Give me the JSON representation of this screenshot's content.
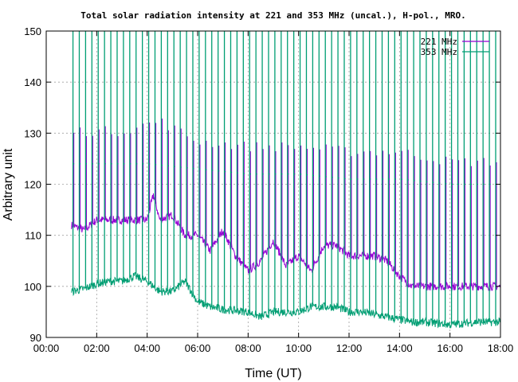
{
  "chart_data": {
    "type": "line",
    "title": "Total solar radiation intensity at 221 and 353 MHz (uncal.), H-pol., MRO.",
    "xlabel": "Time (UT)",
    "ylabel": "Arbitrary unit",
    "xlim": [
      "00:00",
      "18:00"
    ],
    "ylim": [
      90,
      150
    ],
    "x_ticks": [
      "00:00",
      "02:00",
      "04:00",
      "06:00",
      "08:00",
      "10:00",
      "12:00",
      "14:00",
      "16:00",
      "18:00"
    ],
    "y_ticks": [
      90,
      100,
      110,
      120,
      130,
      140,
      150
    ],
    "grid": true,
    "legend_position": "top-right",
    "series": [
      {
        "name": "221 MHz",
        "color": "#9400d3",
        "baseline_points": [
          [
            "01:00",
            112
          ],
          [
            "01:30",
            111
          ],
          [
            "02:00",
            113
          ],
          [
            "02:30",
            113
          ],
          [
            "03:00",
            113
          ],
          [
            "03:30",
            113
          ],
          [
            "04:00",
            113
          ],
          [
            "04:15",
            118
          ],
          [
            "04:30",
            113
          ],
          [
            "05:00",
            114
          ],
          [
            "05:30",
            110
          ],
          [
            "06:00",
            110
          ],
          [
            "06:30",
            107
          ],
          [
            "07:00",
            111
          ],
          [
            "07:30",
            106
          ],
          [
            "08:00",
            103
          ],
          [
            "08:30",
            105
          ],
          [
            "09:00",
            109
          ],
          [
            "09:30",
            104
          ],
          [
            "10:00",
            106
          ],
          [
            "10:30",
            103
          ],
          [
            "11:00",
            108
          ],
          [
            "11:30",
            108
          ],
          [
            "12:00",
            106
          ],
          [
            "12:30",
            106
          ],
          [
            "13:00",
            106
          ],
          [
            "13:30",
            105
          ],
          [
            "14:00",
            102
          ],
          [
            "14:30",
            100
          ],
          [
            "15:00",
            100
          ],
          [
            "16:00",
            100
          ],
          [
            "17:00",
            100
          ],
          [
            "18:00",
            100
          ]
        ],
        "calibration_peak_points": [
          [
            "01:00",
            130
          ],
          [
            "03:00",
            130
          ],
          [
            "04:30",
            132
          ],
          [
            "06:00",
            128
          ],
          [
            "08:00",
            127
          ],
          [
            "10:00",
            127
          ],
          [
            "12:00",
            126
          ],
          [
            "14:00",
            126
          ],
          [
            "16:00",
            124
          ],
          [
            "18:00",
            124
          ]
        ]
      },
      {
        "name": "353 MHz",
        "color": "#009e73",
        "baseline_points": [
          [
            "01:00",
            99
          ],
          [
            "01:30",
            99.5
          ],
          [
            "02:00",
            100.5
          ],
          [
            "02:30",
            101
          ],
          [
            "03:00",
            101
          ],
          [
            "03:30",
            102
          ],
          [
            "04:00",
            101
          ],
          [
            "04:30",
            99
          ],
          [
            "05:00",
            99
          ],
          [
            "05:30",
            101
          ],
          [
            "06:00",
            97
          ],
          [
            "06:30",
            96
          ],
          [
            "07:00",
            95.5
          ],
          [
            "08:00",
            95
          ],
          [
            "08:30",
            94
          ],
          [
            "09:00",
            95
          ],
          [
            "09:30",
            95
          ],
          [
            "10:00",
            95
          ],
          [
            "10:30",
            96
          ],
          [
            "11:00",
            96
          ],
          [
            "11:30",
            96
          ],
          [
            "12:00",
            95
          ],
          [
            "12:30",
            95
          ],
          [
            "13:00",
            94.5
          ],
          [
            "13:30",
            94
          ],
          [
            "14:00",
            93.5
          ],
          [
            "14:30",
            93
          ],
          [
            "15:00",
            93
          ],
          [
            "16:00",
            92.5
          ],
          [
            "17:00",
            93
          ],
          [
            "18:00",
            93
          ]
        ],
        "calibration_peak_points": [
          [
            "01:00",
            124
          ],
          [
            "04:00",
            124
          ],
          [
            "06:00",
            123
          ],
          [
            "08:00",
            122
          ],
          [
            "10:00",
            122
          ],
          [
            "12:00",
            121
          ],
          [
            "14:00",
            121
          ],
          [
            "16:00",
            120
          ],
          [
            "18:00",
            120
          ]
        ],
        "spike_max": 150
      }
    ]
  }
}
